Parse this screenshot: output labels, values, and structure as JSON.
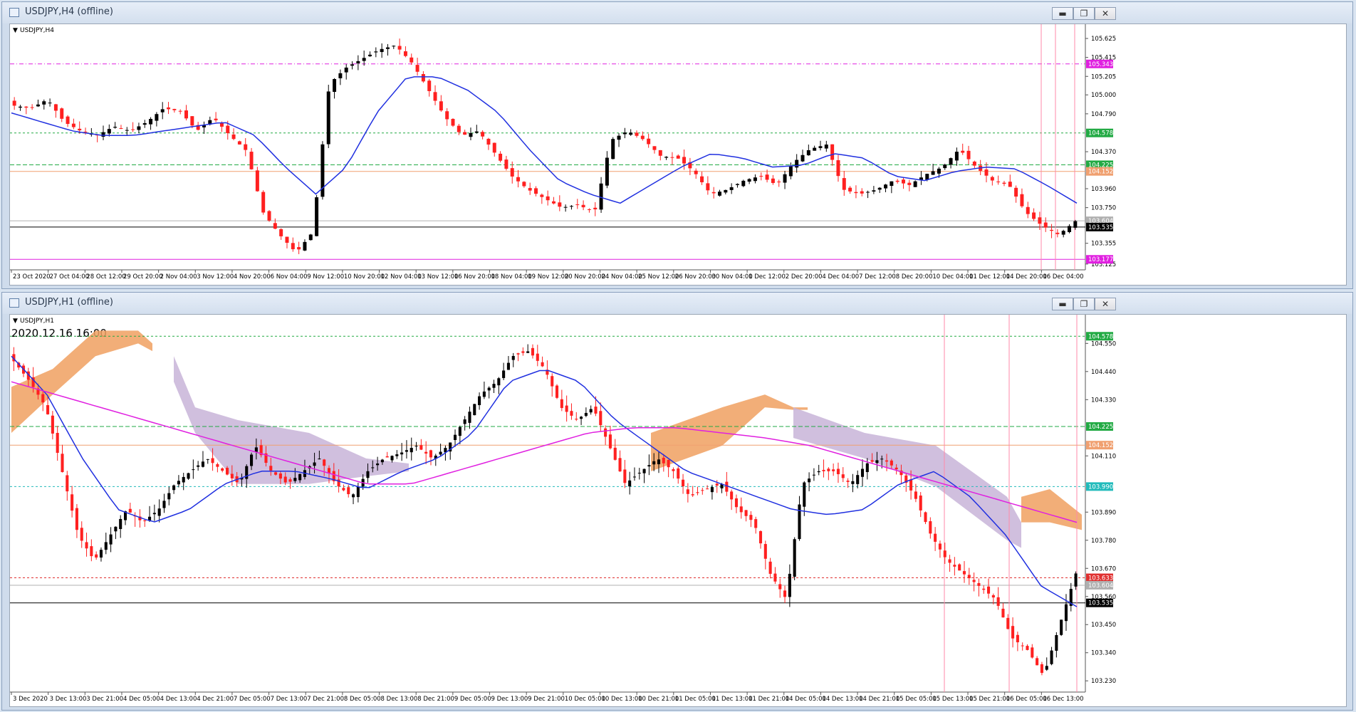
{
  "windows": [
    {
      "title": "USDJPY,H4 (offline)",
      "symbol_label": "USDJPY,H4",
      "buttons": {
        "minimize": "▬",
        "restore": "❐",
        "close": "✕"
      },
      "price_labels": [
        "105.625",
        "105.415",
        "105.205",
        "105.000",
        "104.790",
        "104.370",
        "103.960",
        "103.750",
        "103.355",
        "103.125"
      ],
      "highlighted_levels": [
        {
          "value": "105.343",
          "color": "#e020e0"
        },
        {
          "value": "104.578",
          "color": "#22aa44"
        },
        {
          "value": "104.225",
          "color": "#22aa44"
        },
        {
          "value": "104.152",
          "color": "#f0a070"
        },
        {
          "value": "103.604",
          "color": "#b0b0b0"
        },
        {
          "value": "103.535",
          "color": "#000000"
        },
        {
          "value": "103.177",
          "color": "#e020e0"
        }
      ],
      "time_labels": [
        "23 Oct 2020",
        "27 Oct 04:00",
        "28 Oct 12:00",
        "29 Oct 20:00",
        "2 Nov 04:00",
        "3 Nov 12:00",
        "4 Nov 20:00",
        "6 Nov 04:00",
        "9 Nov 12:00",
        "10 Nov 20:00",
        "12 Nov 04:00",
        "13 Nov 12:00",
        "16 Nov 20:00",
        "18 Nov 04:00",
        "19 Nov 12:00",
        "20 Nov 20:00",
        "24 Nov 04:00",
        "25 Nov 12:00",
        "26 Nov 20:00",
        "30 Nov 04:00",
        "1 Dec 12:00",
        "2 Dec 20:00",
        "4 Dec 04:00",
        "7 Dec 12:00",
        "8 Dec 20:00",
        "10 Dec 04:00",
        "11 Dec 12:00",
        "14 Dec 20:00",
        "16 Dec 04:00"
      ]
    },
    {
      "title": "USDJPY,H1 (offline)",
      "symbol_label": "USDJPY,H1",
      "timestamp": "2020.12.16 16:00",
      "buttons": {
        "minimize": "▬",
        "restore": "❐",
        "close": "✕"
      },
      "price_labels": [
        "104.550",
        "104.440",
        "104.330",
        "104.110",
        "103.890",
        "103.780",
        "103.670",
        "103.560",
        "103.450",
        "103.340",
        "103.230"
      ],
      "highlighted_levels": [
        {
          "value": "104.578",
          "color": "#22aa44"
        },
        {
          "value": "104.225",
          "color": "#22aa44"
        },
        {
          "value": "104.152",
          "color": "#f0a070"
        },
        {
          "value": "103.990",
          "color": "#22bbbb"
        },
        {
          "value": "103.633",
          "color": "#e03030"
        },
        {
          "value": "103.604",
          "color": "#b0b0b0"
        },
        {
          "value": "103.535",
          "color": "#000000"
        }
      ],
      "time_labels": [
        "3 Dec 2020",
        "3 Dec 13:00",
        "3 Dec 21:00",
        "4 Dec 05:00",
        "4 Dec 13:00",
        "4 Dec 21:00",
        "7 Dec 05:00",
        "7 Dec 13:00",
        "7 Dec 21:00",
        "8 Dec 05:00",
        "8 Dec 13:00",
        "8 Dec 21:00",
        "9 Dec 05:00",
        "9 Dec 13:00",
        "9 Dec 21:00",
        "10 Dec 05:00",
        "10 Dec 13:00",
        "10 Dec 21:00",
        "11 Dec 05:00",
        "11 Dec 13:00",
        "11 Dec 21:00",
        "14 Dec 05:00",
        "14 Dec 13:00",
        "14 Dec 21:00",
        "15 Dec 05:00",
        "15 Dec 13:00",
        "15 Dec 21:00",
        "16 Dec 05:00",
        "16 Dec 13:00"
      ]
    }
  ],
  "colors": {
    "bull": "#000000",
    "bear": "#ff2020",
    "ma": "#2030e0",
    "ma_slow": "#e020e0",
    "cloud_orange": "#f0a060",
    "cloud_purple": "#c8b4d8",
    "vline": "#ff8aa8"
  }
}
